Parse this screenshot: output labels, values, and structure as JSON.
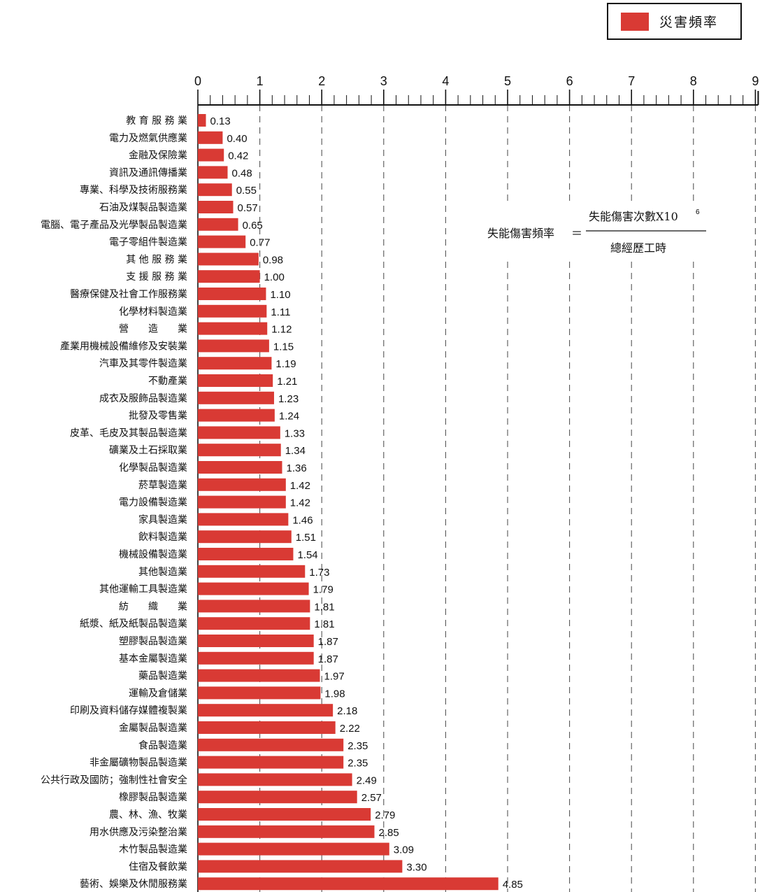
{
  "legend": {
    "label": "災害頻率",
    "color": "#d93a34"
  },
  "formula": {
    "lhs": "失能傷害頻率",
    "equals": "＝",
    "numerator": "失能傷害次數X10",
    "exponent": "6",
    "denominator": "總經歷工時"
  },
  "chart_data": {
    "type": "bar",
    "orientation": "horizontal",
    "xlim": [
      0,
      9
    ],
    "ticks": [
      0,
      1,
      2,
      3,
      4,
      5,
      6,
      7,
      8,
      9
    ],
    "grid": "dashed vertical lines at integer ticks",
    "bar_color": "#d93a34",
    "series": [
      {
        "name": "災害頻率",
        "color": "#d93a34"
      }
    ],
    "categories": [
      "教 育 服 務 業",
      "電力及燃氣供應業",
      "金融及保險業",
      "資訊及通訊傳播業",
      "專業、科學及技術服務業",
      "石油及煤製品製造業",
      "電腦、電子產品及光學製品製造業",
      "電子零組件製造業",
      "其 他 服 務 業",
      "支 援 服 務 業",
      "醫療保健及社會工作服務業",
      "化學材料製造業",
      "營　　造　　業",
      "產業用機械設備維修及安裝業",
      "汽車及其零件製造業",
      "不動產業",
      "成衣及服飾品製造業",
      "批發及零售業",
      "皮革、毛皮及其製品製造業",
      "礦業及土石採取業",
      "化學製品製造業",
      "菸草製造業",
      "電力設備製造業",
      "家具製造業",
      "飲料製造業",
      "機械設備製造業",
      "其他製造業",
      "其他運輸工具製造業",
      "紡　　織　　業",
      "紙漿、紙及紙製品製造業",
      "塑膠製品製造業",
      "基本金屬製造業",
      "藥品製造業",
      "運輸及倉儲業",
      "印刷及資料儲存媒體複製業",
      "金屬製品製造業",
      "食品製造業",
      "非金屬礦物製品製造業",
      "公共行政及國防；強制性社會安全",
      "橡膠製品製造業",
      "農、林、漁、牧業",
      "用水供應及污染整治業",
      "木竹製品製造業",
      "住宿及餐飲業",
      "藝術、娛樂及休閒服務業"
    ],
    "values": [
      0.13,
      0.4,
      0.42,
      0.48,
      0.55,
      0.57,
      0.65,
      0.77,
      0.98,
      1.0,
      1.1,
      1.11,
      1.12,
      1.15,
      1.19,
      1.21,
      1.23,
      1.24,
      1.33,
      1.34,
      1.36,
      1.42,
      1.42,
      1.46,
      1.51,
      1.54,
      1.73,
      1.79,
      1.81,
      1.81,
      1.87,
      1.87,
      1.97,
      1.98,
      2.18,
      2.22,
      2.35,
      2.35,
      2.49,
      2.57,
      2.79,
      2.85,
      3.09,
      3.3,
      4.85
    ],
    "value_labels": [
      "0.13",
      "0.40",
      "0.42",
      "0.48",
      "0.55",
      "0.57",
      "0.65",
      "0.77",
      "0.98",
      "1.00",
      "1.10",
      "1.11",
      "1.12",
      "1.15",
      "1.19",
      "1.21",
      "1.23",
      "1.24",
      "1.33",
      "1.34",
      "1.36",
      "1.42",
      "1.42",
      "1.46",
      "1.51",
      "1.54",
      "1.73",
      "1.79",
      "1.81",
      "1.81",
      "1.87",
      "1.87",
      "1.97",
      "1.98",
      "2.18",
      "2.22",
      "2.35",
      "2.35",
      "2.49",
      "2.57",
      "2.79",
      "2.85",
      "3.09",
      "3.30",
      "4.85"
    ]
  }
}
